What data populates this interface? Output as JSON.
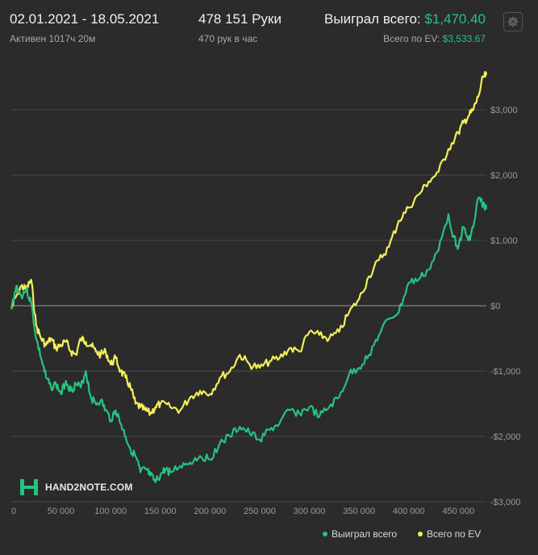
{
  "header": {
    "date_range": "02.01.2021 - 18.05.2021",
    "active_time": "Активен 1017ч 20м",
    "hands": "478 151 Руки",
    "hands_per_hour": "470 рук в час",
    "won_label": "Выиграл всего:",
    "won_value": "$1,470.40",
    "ev_label": "Всего по EV:",
    "ev_value": "$3,533.67"
  },
  "settings_icon": "gear-icon",
  "logo": {
    "text": "HAND2NOTE.COM"
  },
  "colors": {
    "won": "#26c281",
    "ev": "#f3ef5a",
    "background": "#2b2b2b",
    "grid": "#4a4a4a"
  },
  "legend": {
    "won": "Выиграл всего",
    "ev": "Всего по EV"
  },
  "chart_data": {
    "type": "line",
    "title": "",
    "xlabel": "",
    "ylabel": "",
    "xlim": [
      0,
      478151
    ],
    "ylim": [
      -3000,
      3600
    ],
    "x_ticks": [
      0,
      50000,
      100000,
      150000,
      200000,
      250000,
      300000,
      350000,
      400000,
      450000
    ],
    "x_tick_labels": [
      "0",
      "50 000",
      "100 000",
      "150 000",
      "200 000",
      "250 000",
      "300 000",
      "350 000",
      "400 000",
      "450 000"
    ],
    "y_ticks": [
      3000,
      2000,
      1000,
      0,
      -1000,
      -2000,
      -3000
    ],
    "y_tick_labels": [
      "$3,000",
      "$2,000",
      "$1,000",
      "$0",
      "-$1,000",
      "-$2,000",
      "-$3,000"
    ],
    "grid": true,
    "legend_position": "bottom-right",
    "series": [
      {
        "name": "Выиграл всего",
        "x": [
          0,
          5000,
          10000,
          15000,
          20000,
          25000,
          30000,
          35000,
          40000,
          45000,
          50000,
          55000,
          60000,
          65000,
          70000,
          75000,
          80000,
          85000,
          90000,
          95000,
          100000,
          105000,
          110000,
          115000,
          120000,
          125000,
          130000,
          135000,
          140000,
          145000,
          150000,
          155000,
          160000,
          170000,
          180000,
          190000,
          200000,
          210000,
          220000,
          230000,
          240000,
          250000,
          260000,
          270000,
          280000,
          290000,
          300000,
          310000,
          320000,
          330000,
          340000,
          350000,
          360000,
          370000,
          380000,
          390000,
          400000,
          410000,
          420000,
          430000,
          440000,
          445000,
          450000,
          455000,
          460000,
          465000,
          470000,
          475000,
          478151
        ],
        "y": [
          -50,
          300,
          150,
          250,
          50,
          -500,
          -800,
          -1100,
          -1250,
          -1200,
          -1350,
          -1150,
          -1300,
          -1200,
          -1250,
          -1000,
          -1400,
          -1500,
          -1450,
          -1600,
          -1750,
          -1600,
          -1800,
          -2000,
          -2200,
          -2300,
          -2550,
          -2500,
          -2600,
          -2700,
          -2600,
          -2500,
          -2550,
          -2450,
          -2400,
          -2300,
          -2350,
          -2100,
          -2000,
          -1850,
          -1950,
          -2050,
          -1900,
          -1800,
          -1600,
          -1650,
          -1550,
          -1700,
          -1550,
          -1400,
          -1050,
          -950,
          -750,
          -450,
          -200,
          -100,
          350,
          400,
          550,
          850,
          1400,
          1050,
          900,
          1200,
          1000,
          1200,
          1650,
          1550,
          1480
        ]
      },
      {
        "name": "Всего по EV",
        "x": [
          0,
          5000,
          10000,
          15000,
          20000,
          25000,
          30000,
          35000,
          40000,
          45000,
          50000,
          55000,
          60000,
          65000,
          70000,
          75000,
          80000,
          85000,
          90000,
          95000,
          100000,
          105000,
          110000,
          115000,
          120000,
          125000,
          130000,
          135000,
          140000,
          145000,
          150000,
          160000,
          170000,
          180000,
          190000,
          200000,
          210000,
          220000,
          230000,
          240000,
          250000,
          260000,
          270000,
          280000,
          290000,
          300000,
          310000,
          320000,
          330000,
          340000,
          350000,
          360000,
          370000,
          380000,
          390000,
          400000,
          410000,
          420000,
          430000,
          440000,
          450000,
          455000,
          460000,
          465000,
          470000,
          475000,
          478151
        ],
        "y": [
          -50,
          150,
          300,
          250,
          400,
          -300,
          -500,
          -600,
          -500,
          -650,
          -600,
          -550,
          -700,
          -750,
          -500,
          -550,
          -600,
          -700,
          -750,
          -700,
          -900,
          -800,
          -1000,
          -1100,
          -1250,
          -1500,
          -1550,
          -1600,
          -1650,
          -1550,
          -1500,
          -1550,
          -1600,
          -1400,
          -1300,
          -1350,
          -1100,
          -1000,
          -750,
          -900,
          -950,
          -850,
          -800,
          -650,
          -700,
          -400,
          -450,
          -500,
          -400,
          -100,
          100,
          450,
          700,
          900,
          1300,
          1500,
          1700,
          1900,
          2050,
          2400,
          2650,
          2800,
          2900,
          3000,
          3200,
          3500,
          3530
        ]
      }
    ]
  }
}
